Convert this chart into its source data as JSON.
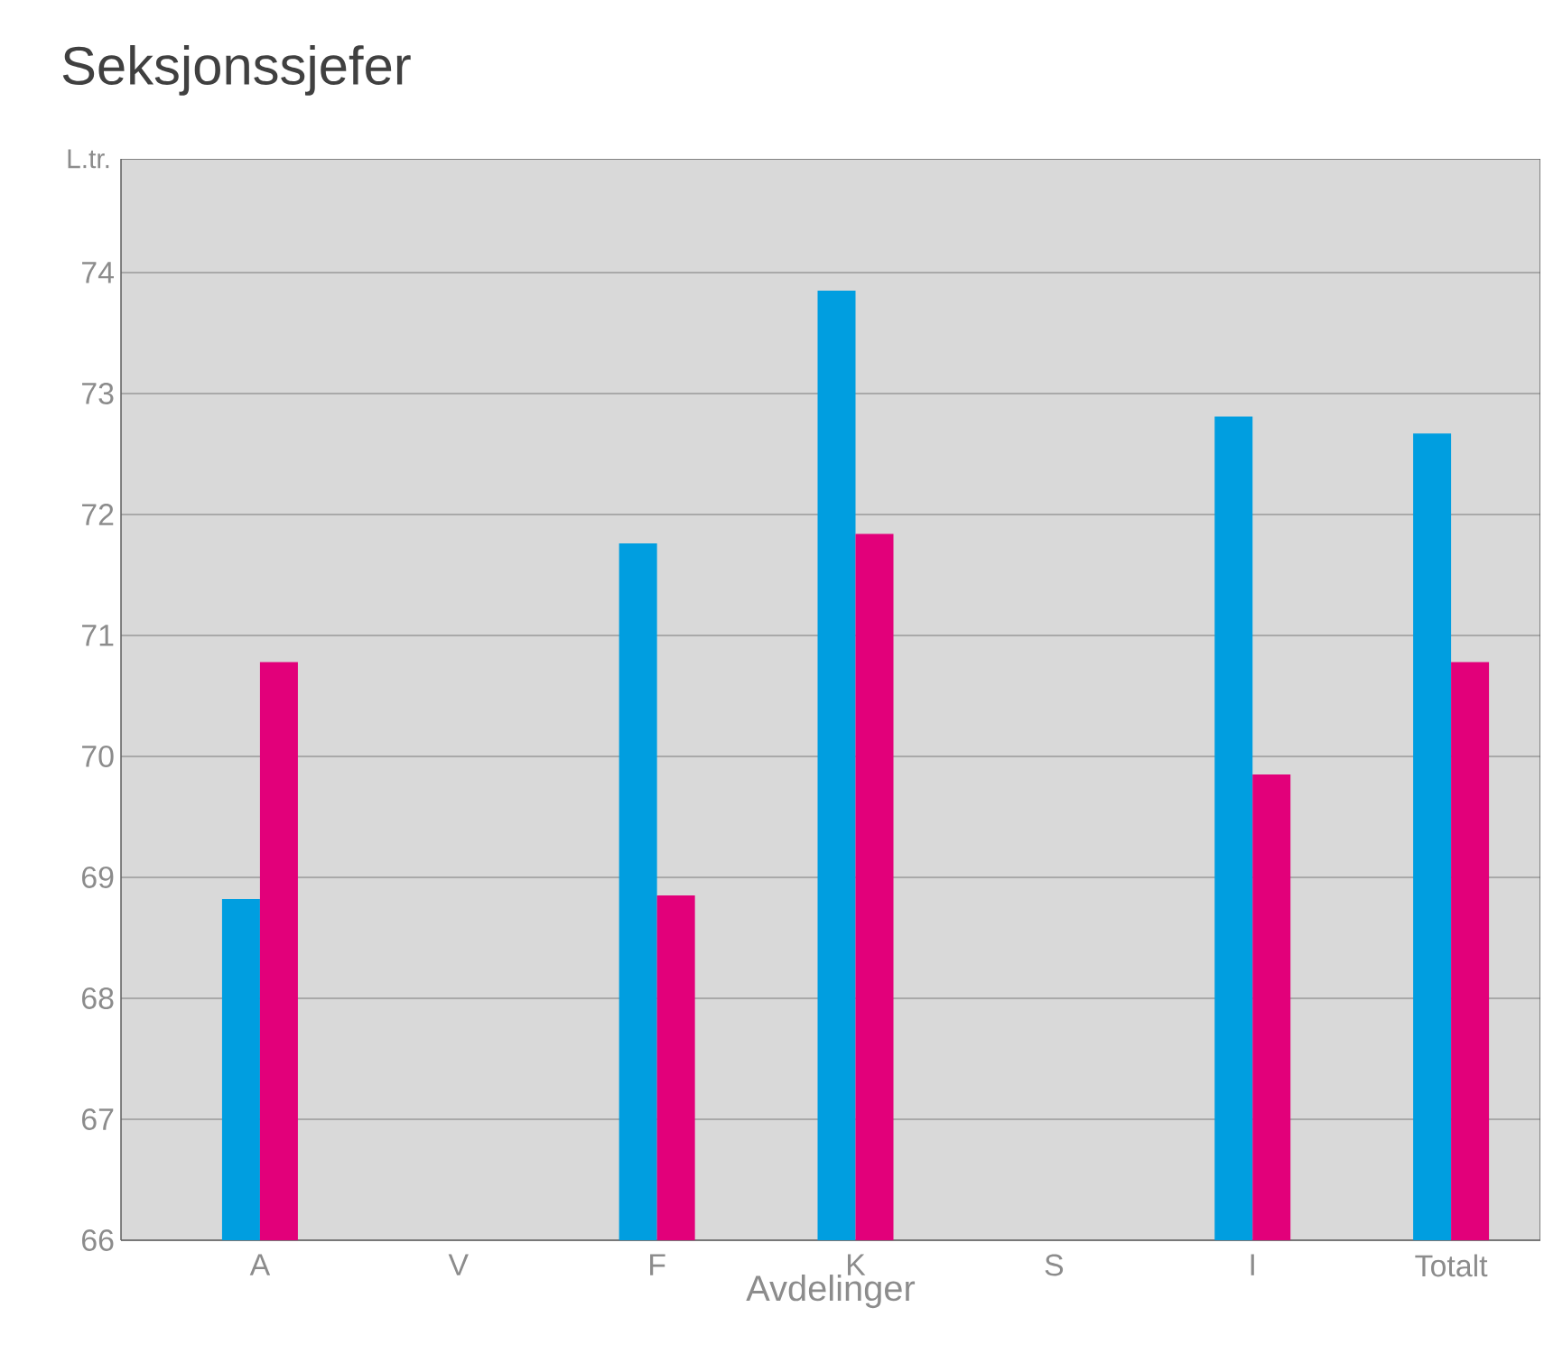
{
  "chart_data": {
    "type": "bar",
    "title": "Seksjonssjefer",
    "xlabel": "Avdelinger",
    "ylabel": "L.tr.",
    "categories": [
      "A",
      "V",
      "F",
      "K",
      "S",
      "I",
      "Totalt"
    ],
    "series": [
      {
        "color": "#009ee0",
        "values": [
          68.82,
          null,
          71.76,
          73.85,
          null,
          72.81,
          72.67
        ]
      },
      {
        "color": "#e2007a",
        "values": [
          70.78,
          null,
          68.85,
          71.84,
          null,
          69.85,
          70.78
        ]
      }
    ],
    "ylim": [
      66,
      74.94
    ],
    "yticks": [
      66,
      67,
      68,
      69,
      70,
      71,
      72,
      73,
      74
    ],
    "grid": "y"
  }
}
